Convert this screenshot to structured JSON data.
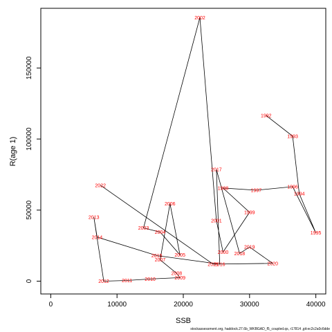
{
  "chart_data": {
    "type": "line",
    "title": "",
    "xlabel": "SSB",
    "ylabel": "R(age 1)",
    "xlim": [
      -1500,
      41500
    ],
    "ylim": [
      -9000,
      192000
    ],
    "x_ticks": [
      0,
      10000,
      20000,
      30000,
      40000
    ],
    "x_tick_labels": [
      "0",
      "10000",
      "20000",
      "30000",
      "40000"
    ],
    "y_ticks": [
      0,
      50000,
      100000,
      150000
    ],
    "y_tick_labels": [
      "0",
      "50000",
      "100000",
      "150000"
    ],
    "grid": false,
    "legend": "none",
    "line_color": "#000000",
    "label_color": "#ff0000",
    "caption": "stockassessment.org, haddock.27.6b_WKBGAD_f5_coupled.qs, r17814 ,git:ec2c2a0c6dde",
    "points": [
      {
        "label": "1992",
        "x": 32500,
        "y": 116500
      },
      {
        "label": "1993",
        "x": 36500,
        "y": 102000
      },
      {
        "label": "1994",
        "x": 37500,
        "y": 61500
      },
      {
        "label": "1995",
        "x": 40000,
        "y": 34000
      },
      {
        "label": "1996",
        "x": 36500,
        "y": 66500
      },
      {
        "label": "1997",
        "x": 31000,
        "y": 64000
      },
      {
        "label": "1998",
        "x": 26000,
        "y": 65500
      },
      {
        "label": "1999",
        "x": 30000,
        "y": 48500
      },
      {
        "label": "2000",
        "x": 26000,
        "y": 20500
      },
      {
        "label": "2001",
        "x": 25000,
        "y": 42500
      },
      {
        "label": "2002",
        "x": 22500,
        "y": 185500
      },
      {
        "label": "2003",
        "x": 14000,
        "y": 37500
      },
      {
        "label": "2004",
        "x": 16500,
        "y": 34500
      },
      {
        "label": "2005",
        "x": 19500,
        "y": 18500
      },
      {
        "label": "2006",
        "x": 18000,
        "y": 54500
      },
      {
        "label": "2007",
        "x": 16500,
        "y": 15000
      },
      {
        "label": "2008",
        "x": 19000,
        "y": 5500
      },
      {
        "label": "2009",
        "x": 19500,
        "y": 2500
      },
      {
        "label": "2010",
        "x": 15000,
        "y": 1500
      },
      {
        "label": "2011",
        "x": 11500,
        "y": 500
      },
      {
        "label": "2012",
        "x": 8000,
        "y": 0
      },
      {
        "label": "2013",
        "x": 6500,
        "y": 45000
      },
      {
        "label": "2014",
        "x": 7000,
        "y": 31000
      },
      {
        "label": "2015",
        "x": 16000,
        "y": 18000
      },
      {
        "label": "2016",
        "x": 25500,
        "y": 12000
      },
      {
        "label": "2017",
        "x": 25000,
        "y": 78500
      },
      {
        "label": "2018",
        "x": 28500,
        "y": 19500
      },
      {
        "label": "2019",
        "x": 30000,
        "y": 24000
      },
      {
        "label": "2020",
        "x": 33500,
        "y": 12500
      },
      {
        "label": "2021",
        "x": 24500,
        "y": 12000
      },
      {
        "label": "2022",
        "x": 7500,
        "y": 67500
      }
    ]
  }
}
